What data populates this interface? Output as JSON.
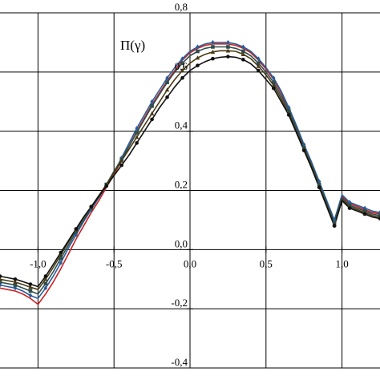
{
  "chart_data": {
    "type": "line",
    "title": "",
    "ylabel": "Π(γ)",
    "xlabel": "",
    "xlim": [
      -1.25,
      1.25
    ],
    "ylim": [
      -0.4,
      0.8
    ],
    "grid": true,
    "legend": "none",
    "x_ticks": [
      {
        "v": -1.0,
        "label": "-1,0"
      },
      {
        "v": -0.5,
        "label": "-0,5"
      },
      {
        "v": 0.0,
        "label": "0,0"
      },
      {
        "v": 0.5,
        "label": "0,5"
      },
      {
        "v": 1.0,
        "label": "1,0"
      }
    ],
    "y_ticks": [
      {
        "v": 0.8,
        "label": "0,8"
      },
      {
        "v": 0.6,
        "label": "0,6"
      },
      {
        "v": 0.4,
        "label": "0,4"
      },
      {
        "v": 0.2,
        "label": "0,2"
      },
      {
        "v": 0.0,
        "label": "0,0"
      },
      {
        "v": -0.2,
        "label": "-0,2"
      },
      {
        "v": -0.4,
        "label": "-0,4"
      }
    ],
    "x": [
      -1.25,
      -1.2,
      -1.15,
      -1.1,
      -1.05,
      -1.0,
      -0.95,
      -0.9,
      -0.85,
      -0.8,
      -0.75,
      -0.7,
      -0.65,
      -0.6,
      -0.55,
      -0.5,
      -0.45,
      -0.4,
      -0.35,
      -0.3,
      -0.25,
      -0.2,
      -0.15,
      -0.1,
      -0.05,
      0.0,
      0.05,
      0.1,
      0.15,
      0.2,
      0.25,
      0.3,
      0.35,
      0.4,
      0.45,
      0.5,
      0.55,
      0.6,
      0.65,
      0.7,
      0.75,
      0.8,
      0.85,
      0.9,
      0.95,
      1.0,
      1.05,
      1.1,
      1.15,
      1.2,
      1.25
    ],
    "series": [
      {
        "color": "#cc2222",
        "marker": "none",
        "values": [
          -0.13,
          -0.135,
          -0.14,
          -0.15,
          -0.165,
          -0.185,
          -0.15,
          -0.11,
          -0.065,
          -0.015,
          0.035,
          0.08,
          0.125,
          0.165,
          0.21,
          0.255,
          0.3,
          0.35,
          0.4,
          0.445,
          0.49,
          0.53,
          0.57,
          0.605,
          0.64,
          0.665,
          0.68,
          0.69,
          0.695,
          0.695,
          0.695,
          0.69,
          0.68,
          0.665,
          0.64,
          0.61,
          0.575,
          0.53,
          0.475,
          0.415,
          0.35,
          0.29,
          0.225,
          0.16,
          0.095,
          0.18,
          0.155,
          0.145,
          0.135,
          0.125,
          0.12
        ]
      },
      {
        "color": "#2a5d9a",
        "marker": "diamond",
        "values": [
          -0.12,
          -0.125,
          -0.13,
          -0.14,
          -0.155,
          -0.165,
          -0.13,
          -0.09,
          -0.045,
          0.005,
          0.05,
          0.095,
          0.135,
          0.175,
          0.215,
          0.26,
          0.31,
          0.36,
          0.41,
          0.455,
          0.5,
          0.54,
          0.58,
          0.615,
          0.645,
          0.67,
          0.685,
          0.695,
          0.7,
          0.7,
          0.7,
          0.695,
          0.685,
          0.67,
          0.645,
          0.615,
          0.58,
          0.535,
          0.48,
          0.42,
          0.355,
          0.295,
          0.23,
          0.165,
          0.1,
          0.185,
          0.16,
          0.15,
          0.14,
          0.13,
          0.125
        ]
      },
      {
        "color": "#2f4f4f",
        "marker": "square",
        "values": [
          -0.11,
          -0.115,
          -0.12,
          -0.13,
          -0.14,
          -0.15,
          -0.115,
          -0.075,
          -0.03,
          0.015,
          0.06,
          0.1,
          0.14,
          0.18,
          0.22,
          0.265,
          0.305,
          0.35,
          0.395,
          0.44,
          0.485,
          0.525,
          0.565,
          0.6,
          0.63,
          0.655,
          0.67,
          0.68,
          0.685,
          0.685,
          0.685,
          0.68,
          0.67,
          0.655,
          0.63,
          0.6,
          0.565,
          0.52,
          0.47,
          0.41,
          0.345,
          0.285,
          0.22,
          0.155,
          0.09,
          0.175,
          0.15,
          0.14,
          0.13,
          0.12,
          0.115
        ]
      },
      {
        "color": "#4a3a10",
        "marker": "triangle",
        "values": [
          -0.1,
          -0.105,
          -0.11,
          -0.118,
          -0.127,
          -0.135,
          -0.1,
          -0.06,
          -0.018,
          0.025,
          0.068,
          0.108,
          0.145,
          0.182,
          0.22,
          0.26,
          0.3,
          0.34,
          0.38,
          0.42,
          0.46,
          0.5,
          0.54,
          0.575,
          0.605,
          0.63,
          0.648,
          0.66,
          0.668,
          0.672,
          0.672,
          0.67,
          0.66,
          0.645,
          0.62,
          0.59,
          0.555,
          0.51,
          0.46,
          0.4,
          0.34,
          0.28,
          0.215,
          0.15,
          0.085,
          0.17,
          0.145,
          0.135,
          0.125,
          0.115,
          0.11
        ]
      },
      {
        "color": "#111111",
        "marker": "circle",
        "values": [
          -0.09,
          -0.095,
          -0.1,
          -0.108,
          -0.117,
          -0.125,
          -0.09,
          -0.05,
          -0.01,
          0.03,
          0.07,
          0.11,
          0.145,
          0.18,
          0.215,
          0.25,
          0.285,
          0.32,
          0.36,
          0.4,
          0.44,
          0.48,
          0.515,
          0.55,
          0.58,
          0.605,
          0.622,
          0.635,
          0.645,
          0.65,
          0.652,
          0.65,
          0.642,
          0.628,
          0.605,
          0.575,
          0.545,
          0.5,
          0.455,
          0.395,
          0.335,
          0.275,
          0.21,
          0.145,
          0.08,
          0.165,
          0.14,
          0.13,
          0.12,
          0.11,
          0.105
        ]
      }
    ]
  }
}
